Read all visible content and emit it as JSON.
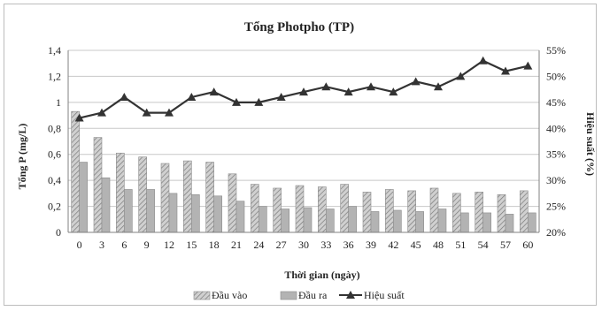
{
  "chart_data": {
    "type": "bar",
    "title": "Tổng Photpho (TP)",
    "xlabel": "Thời gian (ngày)",
    "ylabel": "Tổng P (mg/L)",
    "y2label": "Hiệu suất (%)",
    "categories": [
      "0",
      "3",
      "6",
      "9",
      "12",
      "15",
      "18",
      "21",
      "24",
      "27",
      "30",
      "33",
      "36",
      "39",
      "42",
      "45",
      "48",
      "51",
      "54",
      "57",
      "60"
    ],
    "ylim": [
      0,
      1.4
    ],
    "y2lim": [
      20,
      55
    ],
    "yticks": [
      "0",
      "0,2",
      "0,4",
      "0,6",
      "0,8",
      "1",
      "1,2",
      "1,4"
    ],
    "y2ticks": [
      "20%",
      "25%",
      "30%",
      "35%",
      "40%",
      "45%",
      "50%",
      "55%"
    ],
    "series": [
      {
        "name": "Đầu vào",
        "kind": "bar",
        "axis": "left",
        "pattern": "hatched",
        "values": [
          0.93,
          0.73,
          0.61,
          0.58,
          0.53,
          0.55,
          0.54,
          0.45,
          0.37,
          0.34,
          0.36,
          0.35,
          0.37,
          0.31,
          0.33,
          0.32,
          0.34,
          0.3,
          0.31,
          0.29,
          0.32
        ]
      },
      {
        "name": "Đầu ra",
        "kind": "bar",
        "axis": "left",
        "pattern": "solid",
        "values": [
          0.54,
          0.42,
          0.33,
          0.33,
          0.3,
          0.29,
          0.28,
          0.24,
          0.2,
          0.18,
          0.19,
          0.18,
          0.2,
          0.16,
          0.17,
          0.16,
          0.18,
          0.15,
          0.15,
          0.14,
          0.15
        ]
      },
      {
        "name": "Hiệu suất",
        "kind": "line",
        "axis": "right",
        "marker": "triangle",
        "values": [
          42,
          43,
          46,
          43,
          43,
          46,
          47,
          45,
          45,
          46,
          47,
          48,
          47,
          48,
          47,
          49,
          48,
          50,
          53,
          51,
          52
        ]
      }
    ],
    "grid": true,
    "legend_position": "bottom",
    "colors": {
      "bar_in_fill": "#d0d0d0",
      "bar_in_hatch": "#7a7a7a",
      "bar_out_fill": "#b3b3b3",
      "line": "#333333",
      "grid": "#c8c8c8",
      "axis": "#808080"
    }
  }
}
